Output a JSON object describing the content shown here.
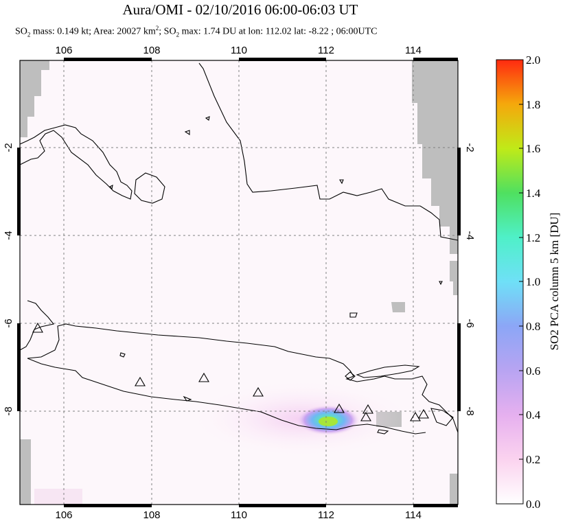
{
  "title": "Aura/OMI - 02/10/2016 06:00-06:03 UT",
  "subtitle": {
    "so2_prefix": "SO",
    "so2_sub": "2",
    "mass_text": " mass: 0.149 kt; Area: 20027 km",
    "area_sup": "2",
    "max_prefix": "; SO",
    "max_sub": "2",
    "max_text": " max: 1.74 DU at lon: 112.02 lat: -8.22 ; 06:00UTC"
  },
  "map": {
    "lon_ticks": [
      "106",
      "108",
      "110",
      "112",
      "114"
    ],
    "lat_ticks": [
      "-2",
      "-4",
      "-6",
      "-8"
    ],
    "volcano_marker": "triangle-icon",
    "land_outline_color": "#000000",
    "no_data_color": "#bebebe",
    "plume_peak": {
      "lon": 112.02,
      "lat": -8.22,
      "value": 1.74
    }
  },
  "colorbar": {
    "label": "SO2 PCA column 5 km [DU]",
    "ticks": [
      "0.0",
      "0.2",
      "0.4",
      "0.6",
      "0.8",
      "1.0",
      "1.2",
      "1.4",
      "1.6",
      "1.8",
      "2.0"
    ],
    "colors": [
      "#ffffff",
      "#fbd3ef",
      "#d8a6f0",
      "#9f9ff5",
      "#6fc3f7",
      "#6ff3f3",
      "#4ff0a8",
      "#59e040",
      "#b6e81a",
      "#f5b20c",
      "#ff3b10"
    ]
  }
}
